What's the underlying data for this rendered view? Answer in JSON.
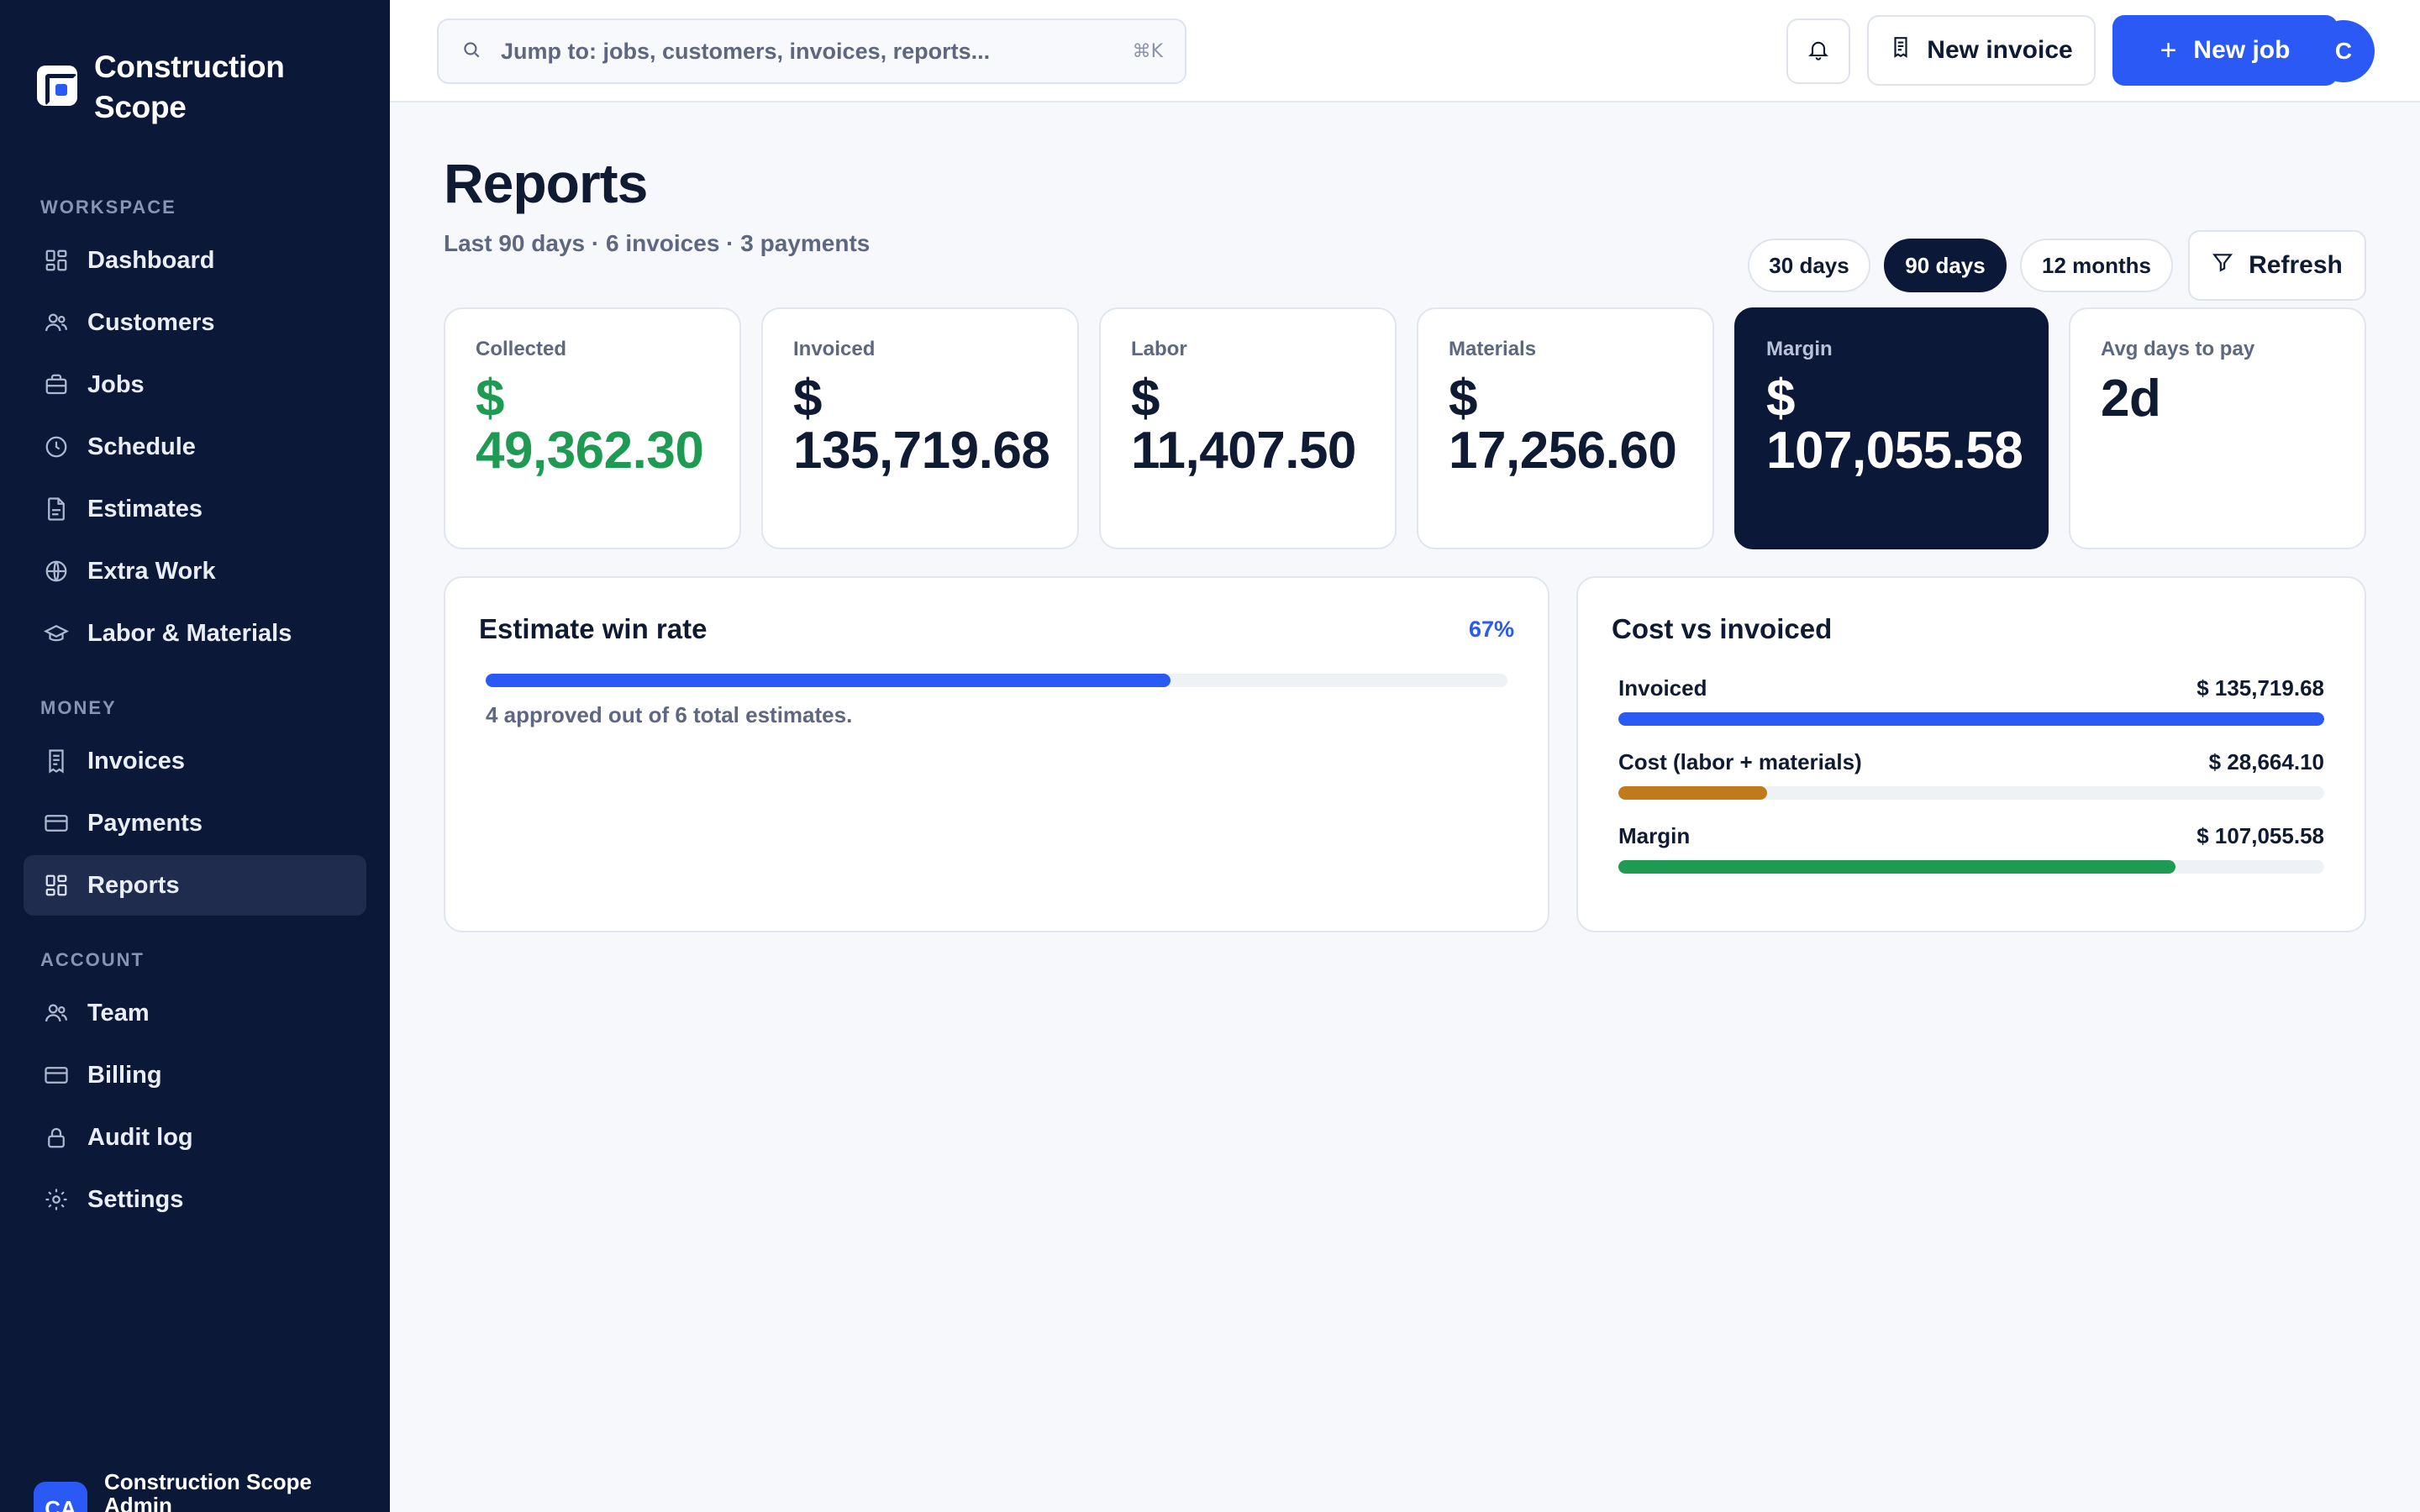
{
  "app": {
    "brand": "Construction Scope",
    "user_initials": "CA",
    "user_name": "Construction Scope Admin"
  },
  "sidebar": {
    "sections": [
      {
        "label": "WORKSPACE",
        "items": [
          {
            "label": "Dashboard",
            "icon": "grid-icon"
          },
          {
            "label": "Customers",
            "icon": "users-icon"
          },
          {
            "label": "Jobs",
            "icon": "briefcase-icon"
          },
          {
            "label": "Schedule",
            "icon": "clock-icon"
          },
          {
            "label": "Estimates",
            "icon": "file-icon"
          },
          {
            "label": "Extra Work",
            "icon": "globe-icon"
          },
          {
            "label": "Labor & Materials",
            "icon": "hat-icon"
          }
        ]
      },
      {
        "label": "MONEY",
        "items": [
          {
            "label": "Invoices",
            "icon": "receipt-icon"
          },
          {
            "label": "Payments",
            "icon": "card-icon"
          },
          {
            "label": "Reports",
            "icon": "grid-icon",
            "active": true
          }
        ]
      },
      {
        "label": "ACCOUNT",
        "items": [
          {
            "label": "Team",
            "icon": "users-icon"
          },
          {
            "label": "Billing",
            "icon": "card-icon"
          },
          {
            "label": "Audit log",
            "icon": "lock-icon"
          },
          {
            "label": "Settings",
            "icon": "gear-icon"
          }
        ]
      }
    ]
  },
  "topbar": {
    "search_placeholder": "Jump to: jobs, customers, invoices, reports...",
    "shortcut": "⌘K",
    "new_invoice": "New invoice",
    "new_job": "New job",
    "avatar": "C"
  },
  "page": {
    "title": "Reports",
    "subtitle": "Last 90 days · 6 invoices · 3 payments",
    "ranges": [
      "30 days",
      "90 days",
      "12 months"
    ],
    "active_range": "90 days",
    "refresh": "Refresh"
  },
  "kpis": [
    {
      "label": "Collected",
      "currency": "$",
      "value": "49,362.30"
    },
    {
      "label": "Invoiced",
      "currency": "$",
      "value": "135,719.68"
    },
    {
      "label": "Labor",
      "currency": "$",
      "value": "11,407.50"
    },
    {
      "label": "Materials",
      "currency": "$",
      "value": "17,256.60"
    },
    {
      "label": "Margin",
      "currency": "$",
      "value": "107,055.58"
    },
    {
      "label": "Avg days to pay",
      "currency": "",
      "value": "2d"
    }
  ],
  "win_rate": {
    "title": "Estimate win rate",
    "percent_label": "67%",
    "fraction": 0.67,
    "note": "4 approved out of 6 total estimates."
  },
  "cost_vs_invoiced": {
    "title": "Cost vs invoiced",
    "rows": [
      {
        "label": "Invoiced",
        "value": "$ 135,719.68",
        "fraction": 1.0,
        "color": "#2b59f5"
      },
      {
        "label": "Cost (labor + materials)",
        "value": "$ 28,664.10",
        "fraction": 0.211,
        "color": "#c07a1b"
      },
      {
        "label": "Margin",
        "value": "$ 107,055.58",
        "fraction": 0.789,
        "color": "#1f9a52"
      }
    ]
  }
}
